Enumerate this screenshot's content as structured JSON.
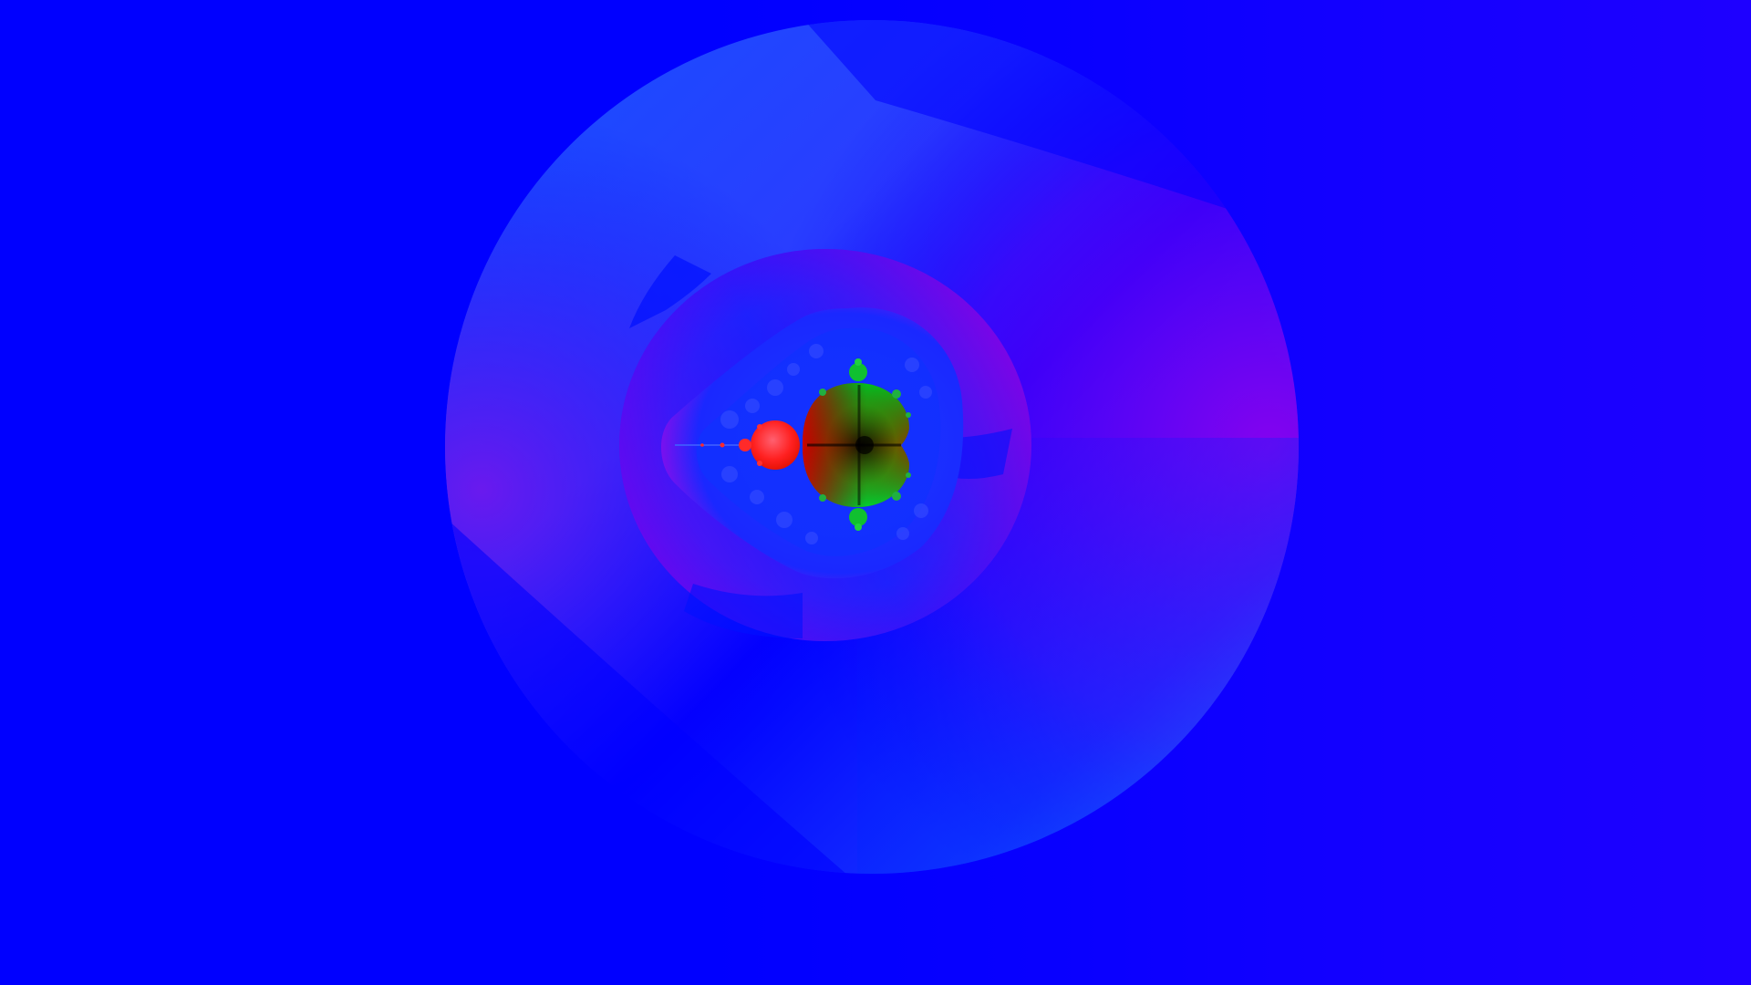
{
  "scene": {
    "subject": "mandelbrot-fractal",
    "palette": {
      "background": "#0000ff",
      "background_right": "#1e00ff",
      "outer_ring_light": "#1a4dff",
      "outer_ring_violet": "#7000f0",
      "inner_ring_violet": "#8a00e8",
      "main_cardioid_green": "#00c020",
      "main_cardioid_dark": "#000000",
      "main_cardioid_red": "#c00000",
      "period2_bulb": "#ff2a2a",
      "filament": "#3355ff"
    }
  }
}
